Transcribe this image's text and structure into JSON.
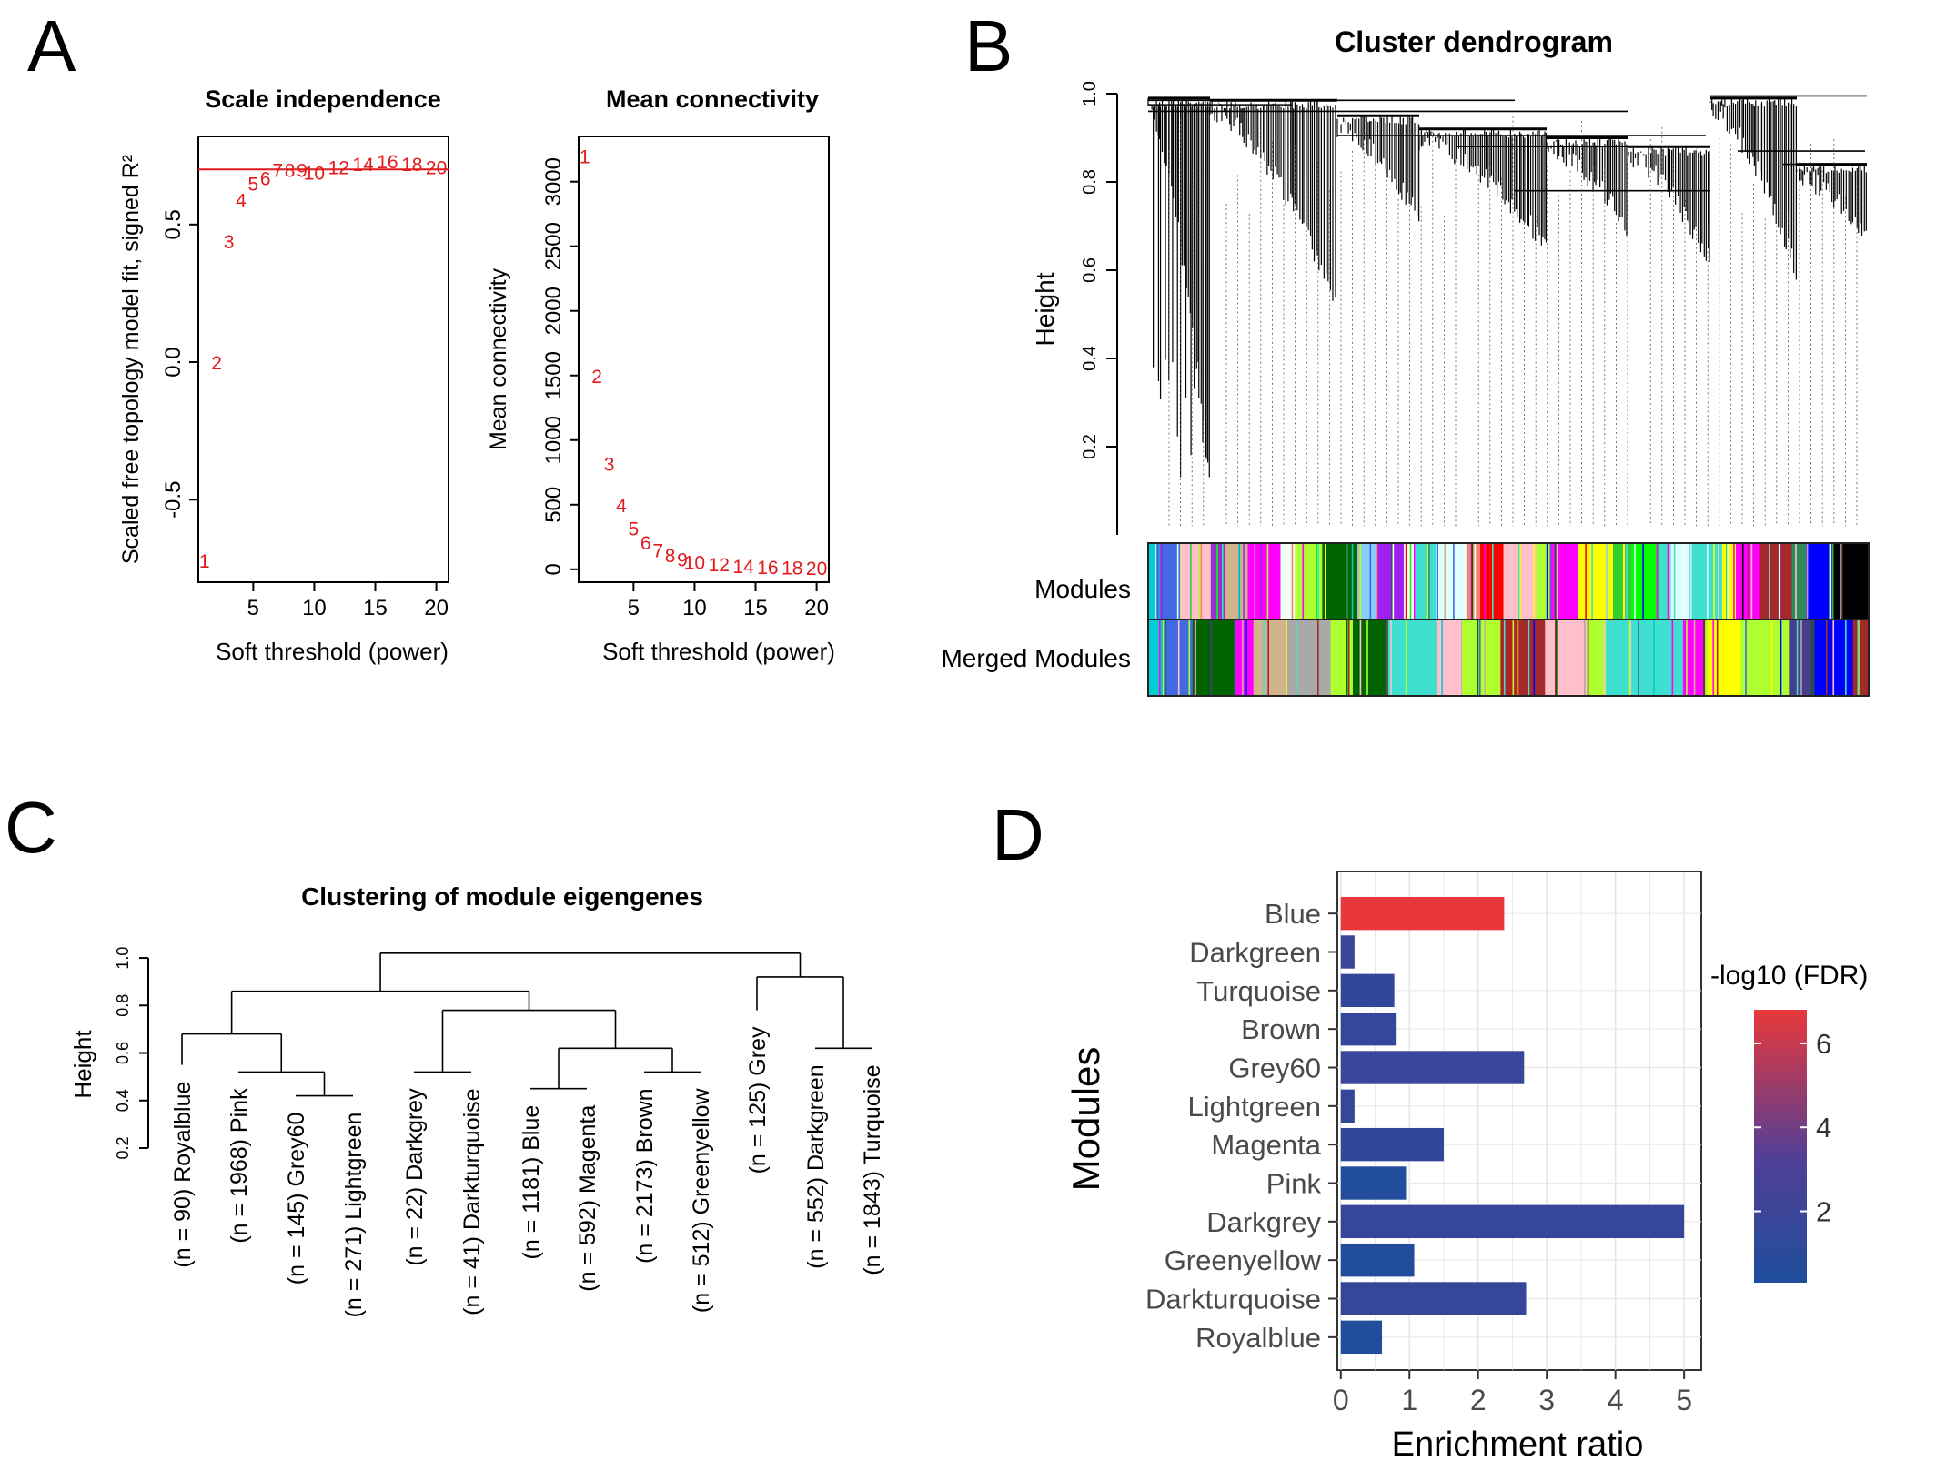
{
  "panels": {
    "A": {
      "letter": "A",
      "left": {
        "chart_data": {
          "type": "scatter",
          "title": "Scale independence",
          "xlabel": "Soft threshold (power)",
          "ylabel": "Scaled free topology model fit, signed R²",
          "xlim": [
            0.5,
            21
          ],
          "ylim": [
            -0.8,
            0.82
          ],
          "xticks": [
            "5",
            "10",
            "15",
            "20"
          ],
          "yticks": [
            "-0.5",
            "0.0",
            "0.5"
          ],
          "reference_line": 0.7,
          "points_color": "#e31a1c",
          "x": [
            1,
            2,
            3,
            4,
            5,
            6,
            7,
            8,
            9,
            10,
            12,
            14,
            16,
            18,
            20
          ],
          "y": [
            -0.72,
            0.0,
            0.44,
            0.59,
            0.65,
            0.67,
            0.7,
            0.7,
            0.7,
            0.69,
            0.71,
            0.72,
            0.73,
            0.72,
            0.71
          ],
          "labels": [
            "1",
            "2",
            "3",
            "4",
            "5",
            "6",
            "7",
            "8",
            "9",
            "10",
            "12",
            "14",
            "16",
            "18",
            "20"
          ]
        }
      },
      "right": {
        "chart_data": {
          "type": "scatter",
          "title": "Mean connectivity",
          "xlabel": "Soft threshold (power)",
          "ylabel": "Mean connectivity",
          "xlim": [
            0.5,
            21
          ],
          "ylim": [
            -100,
            3350
          ],
          "xticks": [
            "5",
            "10",
            "15",
            "20"
          ],
          "yticks": [
            "0",
            "500",
            "1000",
            "1500",
            "2000",
            "2500",
            "3000"
          ],
          "points_color": "#e31a1c",
          "x": [
            1,
            2,
            3,
            4,
            5,
            6,
            7,
            8,
            9,
            10,
            12,
            14,
            16,
            18,
            20
          ],
          "y": [
            3200,
            1500,
            820,
            500,
            320,
            210,
            150,
            110,
            80,
            60,
            40,
            25,
            20,
            15,
            12
          ],
          "labels": [
            "1",
            "2",
            "3",
            "4",
            "5",
            "6",
            "7",
            "8",
            "9",
            "10",
            "12",
            "14",
            "16",
            "18",
            "20"
          ]
        }
      }
    },
    "B": {
      "letter": "B",
      "title": "Cluster dendrogram",
      "ylabel": "Height",
      "yticks": [
        "0.2",
        "0.4",
        "0.6",
        "0.8",
        "1.0"
      ],
      "row_labels": [
        "Modules",
        "Merged Modules"
      ],
      "modules_colors": [
        "#00ced1",
        "#4169e1",
        "#ffc0cb",
        "#9932cc",
        "#d2b48c",
        "#ff00ff",
        "#f0fff0",
        "#adff2f",
        "#006400",
        "#87cefa",
        "#a020f0",
        "#ffffff",
        "#40e0d0",
        "#e0ffff",
        "#fa8072",
        "#ff0000",
        "#ffc0cb",
        "#adff2f",
        "#ff00ff",
        "#ffff00",
        "#32cd32",
        "#00ff00",
        "#40e0d0",
        "#e0ffff",
        "#40e0d0",
        "#ffff00",
        "#ff00ff",
        "#a52a2a",
        "#2e8b57",
        "#0000ff",
        "#000000"
      ],
      "merged_colors": [
        "#00ced1",
        "#4169e1",
        "#006400",
        "#ff00ff",
        "#d2b48c",
        "#a9a9a9",
        "#adff2f",
        "#006400",
        "#40e0d0",
        "#ffc0cb",
        "#adff2f",
        "#b22222",
        "#a52a2a",
        "#ffc0cb",
        "#adff2f",
        "#40e0d0",
        "#40e0d0",
        "#ff00ff",
        "#ffff00",
        "#adff2f",
        "#483d8b",
        "#0000ff",
        "#a52a2a"
      ]
    },
    "C": {
      "letter": "C",
      "title": "Clustering of module eigengenes",
      "ylabel": "Height",
      "yticks": [
        "0.2",
        "0.4",
        "0.6",
        "0.8",
        "1.0"
      ],
      "leaves": [
        "(n = 90) Royalblue",
        "(n = 1968) Pink",
        "(n = 145) Grey60",
        "(n = 271) Lightgreen",
        "(n = 22) Darkgrey",
        "(n = 41) Darkturquoise",
        "(n = 1181) Blue",
        "(n = 592) Magenta",
        "(n = 2173) Brown",
        "(n = 512) Greenyellow",
        "(n = 125) Grey",
        "(n = 552) Darkgreen",
        "(n = 1843) Turquoise"
      ]
    },
    "D": {
      "letter": "D",
      "chart_data": {
        "type": "bar",
        "orientation": "horizontal",
        "xlabel": "Enrichment ratio",
        "ylabel": "Modules",
        "xlim": [
          -0.05,
          5.25
        ],
        "xticks": [
          "0",
          "1",
          "2",
          "3",
          "4",
          "5"
        ],
        "categories": [
          "Blue",
          "Darkgreen",
          "Turquoise",
          "Brown",
          "Grey60",
          "Lightgreen",
          "Magenta",
          "Pink",
          "Darkgrey",
          "Greenyellow",
          "Darkturquoise",
          "Royalblue"
        ],
        "values": [
          2.38,
          0.2,
          0.78,
          0.8,
          2.67,
          0.2,
          1.5,
          0.95,
          5.0,
          1.07,
          2.7,
          0.6
        ],
        "fdr": [
          6.8,
          2.0,
          1.4,
          1.5,
          1.9,
          1.6,
          1.4,
          0.4,
          1.7,
          0.4,
          1.7,
          0.4
        ],
        "legend": {
          "title": "-log10 (FDR)",
          "ticks": [
            "2",
            "4",
            "6"
          ],
          "range": [
            0.3,
            6.8
          ],
          "low_color": "#1f4e9c",
          "mid_color": "#503f96",
          "high_color": "#e8383b",
          "placement": "right"
        }
      }
    }
  }
}
